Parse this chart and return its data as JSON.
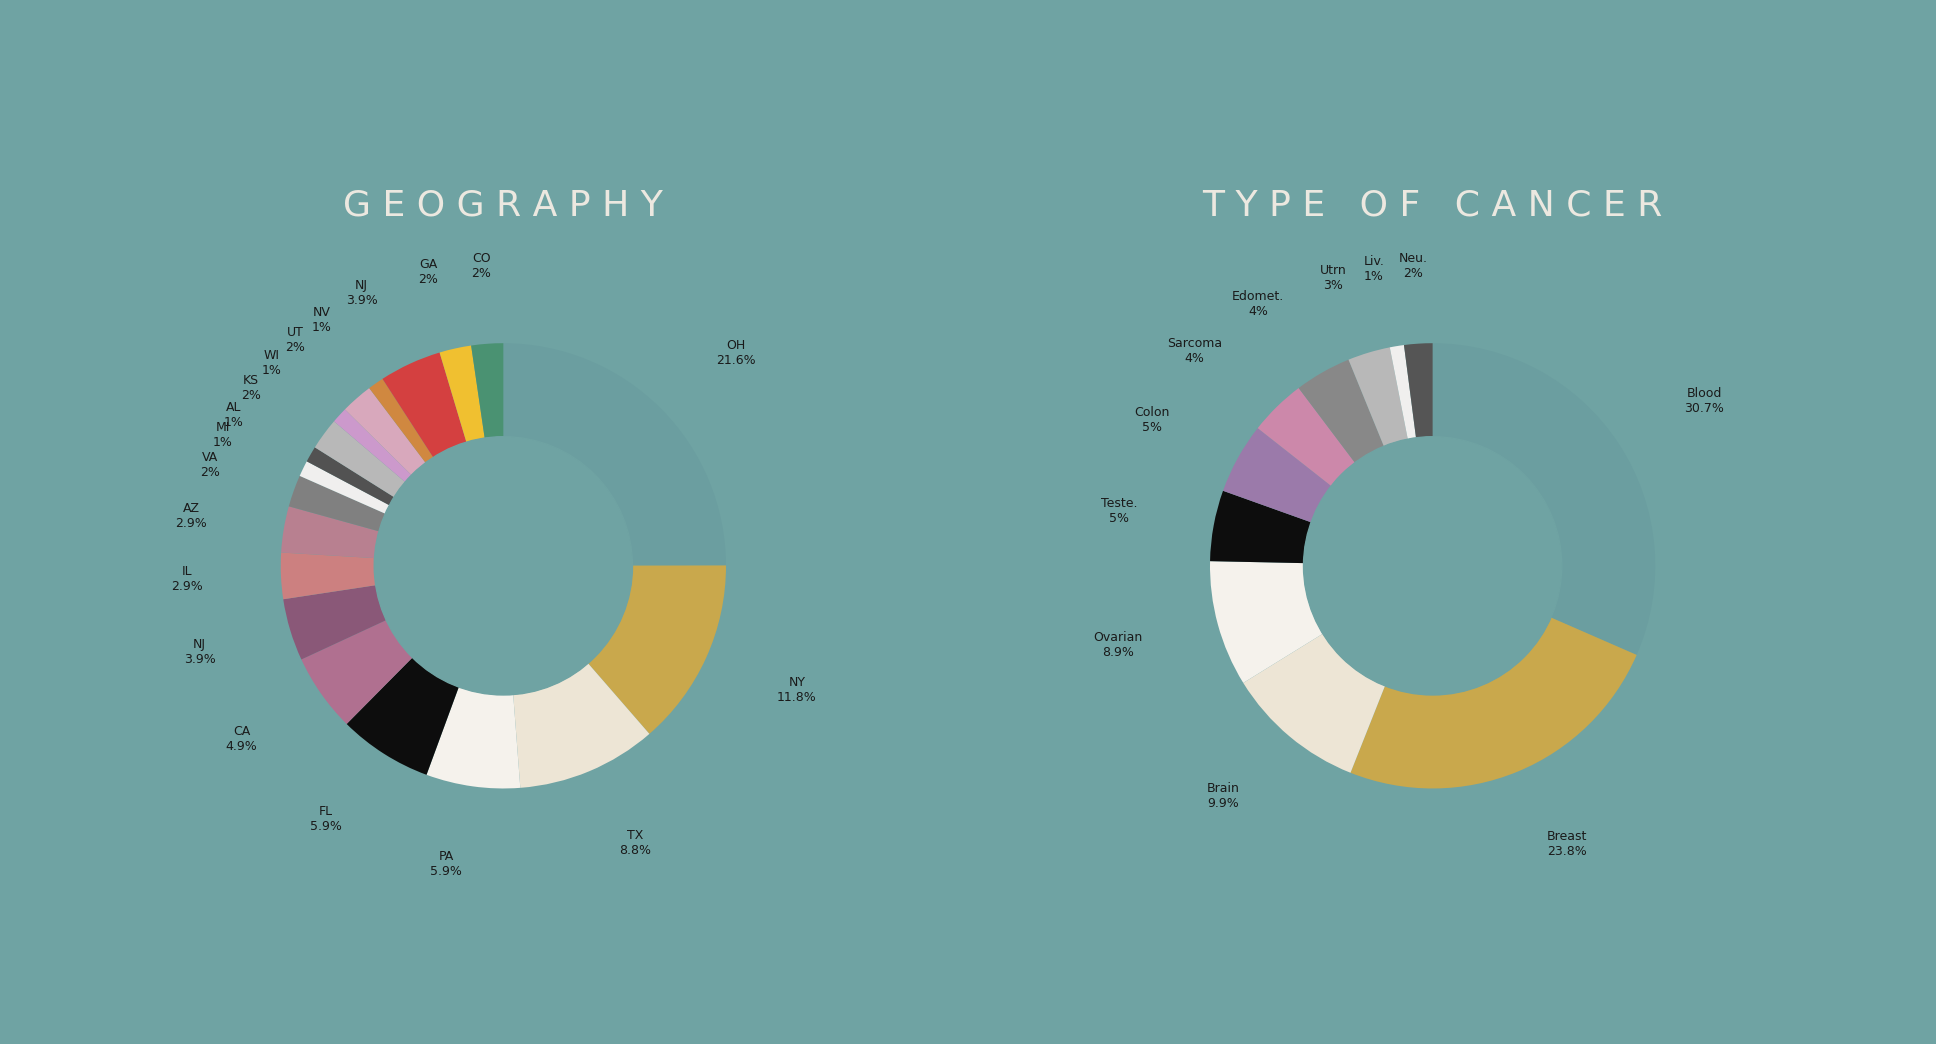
{
  "background_color": "#6fa3a3",
  "title_color": "#ece8e0",
  "label_color": "#1a1a1a",
  "geo_title": "G E O G R A P H Y",
  "geo_slices": [
    {
      "label": "OH",
      "pct": "21.6%",
      "value": 21.6,
      "color": "#6b9ea0"
    },
    {
      "label": "NY",
      "pct": "11.8%",
      "value": 11.8,
      "color": "#c9a84c"
    },
    {
      "label": "TX",
      "pct": "8.8%",
      "value": 8.8,
      "color": "#ede5d5"
    },
    {
      "label": "PA",
      "pct": "5.9%",
      "value": 5.9,
      "color": "#f5f2ec"
    },
    {
      "label": "FL",
      "pct": "5.9%",
      "value": 5.9,
      "color": "#0d0d0d"
    },
    {
      "label": "CA",
      "pct": "4.9%",
      "value": 4.9,
      "color": "#b07090"
    },
    {
      "label": "NJ",
      "pct": "3.9%",
      "value": 3.9,
      "color": "#8a5878"
    },
    {
      "label": "IL",
      "pct": "2.9%",
      "value": 2.9,
      "color": "#cc8080"
    },
    {
      "label": "AZ",
      "pct": "2.9%",
      "value": 2.9,
      "color": "#b88090"
    },
    {
      "label": "VA",
      "pct": "2%",
      "value": 2.0,
      "color": "#808080"
    },
    {
      "label": "MI",
      "pct": "1%",
      "value": 1.0,
      "color": "#f0efee"
    },
    {
      "label": "AL",
      "pct": "1%",
      "value": 1.0,
      "color": "#525252"
    },
    {
      "label": "KS",
      "pct": "2%",
      "value": 2.0,
      "color": "#b8b8b8"
    },
    {
      "label": "WI",
      "pct": "1%",
      "value": 1.0,
      "color": "#cc99cc"
    },
    {
      "label": "UT",
      "pct": "2%",
      "value": 2.0,
      "color": "#d8a8bc"
    },
    {
      "label": "NV",
      "pct": "1%",
      "value": 1.0,
      "color": "#d08840"
    },
    {
      "label": "NJ",
      "pct": "3.9%",
      "value": 3.9,
      "color": "#d44040"
    },
    {
      "label": "GA",
      "pct": "2%",
      "value": 2.0,
      "color": "#f0c030"
    },
    {
      "label": "CO",
      "pct": "2%",
      "value": 2.0,
      "color": "#4a9272"
    }
  ],
  "cancer_title": "T Y P E   O F   C A N C E R",
  "cancer_slices": [
    {
      "label": "Blood",
      "pct": "30.7%",
      "value": 30.7,
      "color": "#6b9ea0"
    },
    {
      "label": "Breast",
      "pct": "23.8%",
      "value": 23.8,
      "color": "#c9a84c"
    },
    {
      "label": "Brain",
      "pct": "9.9%",
      "value": 9.9,
      "color": "#ede5d5"
    },
    {
      "label": "Ovarian",
      "pct": "8.9%",
      "value": 8.9,
      "color": "#f5f2ec"
    },
    {
      "label": "Teste.",
      "pct": "5%",
      "value": 5.0,
      "color": "#0d0d0d"
    },
    {
      "label": "Colon",
      "pct": "5%",
      "value": 5.0,
      "color": "#9b7aaa"
    },
    {
      "label": "Sarcoma",
      "pct": "4%",
      "value": 4.0,
      "color": "#cc88aa"
    },
    {
      "label": "Edomet.",
      "pct": "4%",
      "value": 4.0,
      "color": "#888888"
    },
    {
      "label": "Utrn",
      "pct": "3%",
      "value": 3.0,
      "color": "#b8b8b8"
    },
    {
      "label": "Liv.",
      "pct": "1%",
      "value": 1.0,
      "color": "#f0efee"
    },
    {
      "label": "Neu.",
      "pct": "2%",
      "value": 2.0,
      "color": "#555555"
    }
  ]
}
